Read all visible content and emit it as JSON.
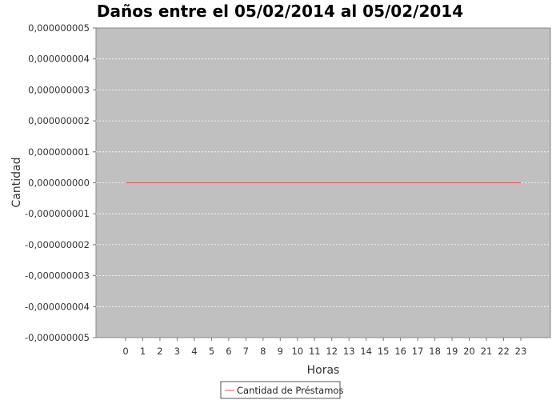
{
  "chart_data": {
    "type": "line",
    "title": "Daños entre el  05/02/2014 al 05/02/2014",
    "xlabel": "Horas",
    "ylabel": "Cantidad",
    "categories": [
      "0",
      "1",
      "2",
      "3",
      "4",
      "5",
      "6",
      "7",
      "8",
      "9",
      "10",
      "11",
      "12",
      "13",
      "14",
      "15",
      "16",
      "17",
      "18",
      "19",
      "20",
      "21",
      "22",
      "23"
    ],
    "series": [
      {
        "name": "Cantidad de Préstamos",
        "color": "#e8584f",
        "values": [
          0,
          0,
          0,
          0,
          0,
          0,
          0,
          0,
          0,
          0,
          0,
          0,
          0,
          0,
          0,
          0,
          0,
          0,
          0,
          0,
          0,
          0,
          0,
          0
        ]
      }
    ],
    "ylim": [
      -5e-09,
      5e-09
    ],
    "yticks": [
      5e-09,
      4e-09,
      3e-09,
      2e-09,
      1e-09,
      0,
      -1e-09,
      -2e-09,
      -3e-09,
      -4e-09,
      -5e-09
    ],
    "ytick_labels": [
      "0,000000005",
      "0,000000004",
      "0,000000003",
      "0,000000002",
      "0,000000001",
      "0,000000000",
      "-0,000000001",
      "-0,000000002",
      "-0,000000003",
      "-0,000000004",
      "-0,000000005"
    ],
    "grid": true,
    "legend_position": "bottom",
    "plot_background": "#c0c0c0",
    "grid_color": "#ffffff"
  }
}
